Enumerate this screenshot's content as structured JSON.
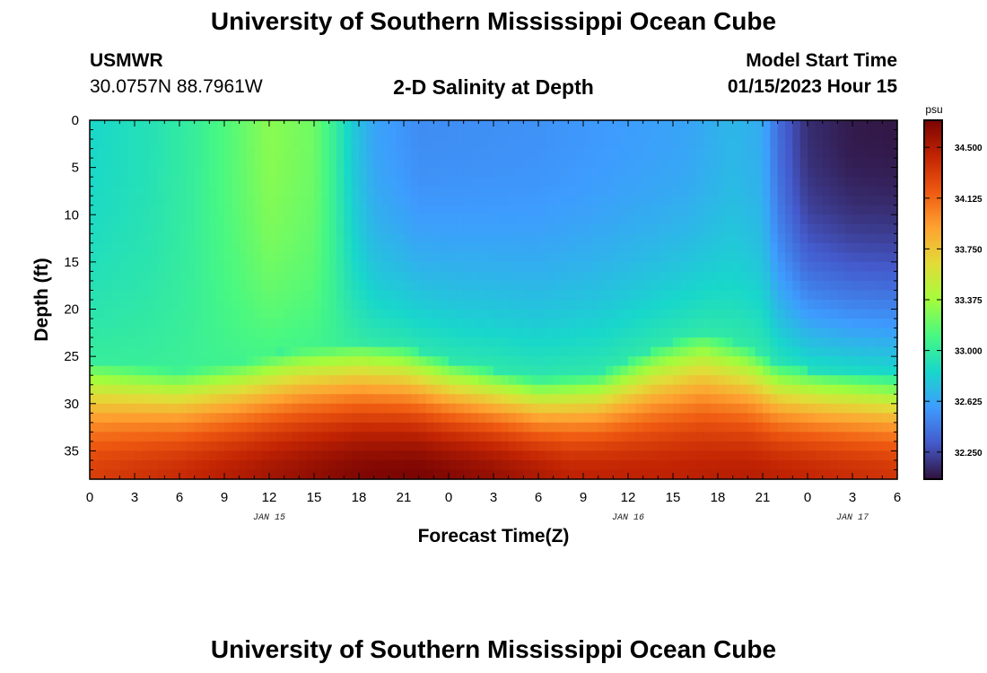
{
  "header": {
    "title": "University of Southern Mississippi Ocean Cube",
    "station_id": "USMWR",
    "coords": "30.0757N  88.7961W",
    "chart_title": "2-D Salinity at Depth",
    "start_label": "Model Start Time",
    "start_value": "01/15/2023 Hour 15"
  },
  "footer": {
    "title": "University of Southern Mississippi Ocean Cube"
  },
  "chart_data": {
    "type": "heatmap",
    "xlabel": "Forecast Time(Z)",
    "ylabel": "Depth (ft)",
    "x_tick_labels": [
      "0",
      "3",
      "6",
      "9",
      "12",
      "15",
      "18",
      "21",
      "0",
      "3",
      "6",
      "9",
      "12",
      "15",
      "18",
      "21",
      "0",
      "3",
      "6"
    ],
    "date_labels": [
      {
        "label": "JAN 15",
        "hour": 12
      },
      {
        "label": "JAN 16",
        "hour": 36
      },
      {
        "label": "JAN 17",
        "hour": 51
      }
    ],
    "x_range_hours": [
      0,
      54
    ],
    "y_tick_labels": [
      "0",
      "5",
      "10",
      "15",
      "20",
      "25",
      "30",
      "35"
    ],
    "y_range_ft": [
      0,
      38
    ],
    "colorbar": {
      "unit": "psu",
      "range": [
        32.05,
        34.7
      ],
      "tick_labels": [
        "32.250",
        "32.625",
        "33.000",
        "33.375",
        "33.750",
        "34.125",
        "34.500"
      ]
    },
    "surface_salinity_by_hour": [
      [
        0,
        32.85
      ],
      [
        4,
        32.92
      ],
      [
        7,
        33.02
      ],
      [
        10,
        33.18
      ],
      [
        12,
        33.3
      ],
      [
        15,
        33.22
      ],
      [
        16.5,
        33.0
      ],
      [
        17.5,
        32.8
      ],
      [
        19,
        32.62
      ],
      [
        22,
        32.52
      ],
      [
        30,
        32.54
      ],
      [
        40,
        32.62
      ],
      [
        43,
        32.7
      ],
      [
        45,
        32.65
      ],
      [
        46,
        32.4
      ],
      [
        48,
        32.15
      ],
      [
        51,
        32.08
      ],
      [
        54,
        32.07
      ]
    ],
    "halocline_depth_ft_by_hour": [
      [
        0,
        27.5
      ],
      [
        6,
        28.5
      ],
      [
        10,
        27.5
      ],
      [
        14,
        26.0
      ],
      [
        18,
        25.5
      ],
      [
        21,
        26.0
      ],
      [
        24,
        27.5
      ],
      [
        30,
        29.5
      ],
      [
        34,
        29.0
      ],
      [
        38,
        26.0
      ],
      [
        41,
        24.5
      ],
      [
        44,
        26.0
      ],
      [
        46,
        28.0
      ],
      [
        49,
        28.8
      ],
      [
        54,
        29.5
      ]
    ],
    "bottom_salinity_by_hour": [
      [
        0,
        34.3
      ],
      [
        6,
        34.4
      ],
      [
        12,
        34.55
      ],
      [
        18,
        34.68
      ],
      [
        22,
        34.7
      ],
      [
        27,
        34.6
      ],
      [
        32,
        34.45
      ],
      [
        38,
        34.45
      ],
      [
        44,
        34.48
      ],
      [
        50,
        34.4
      ],
      [
        54,
        34.35
      ]
    ]
  }
}
